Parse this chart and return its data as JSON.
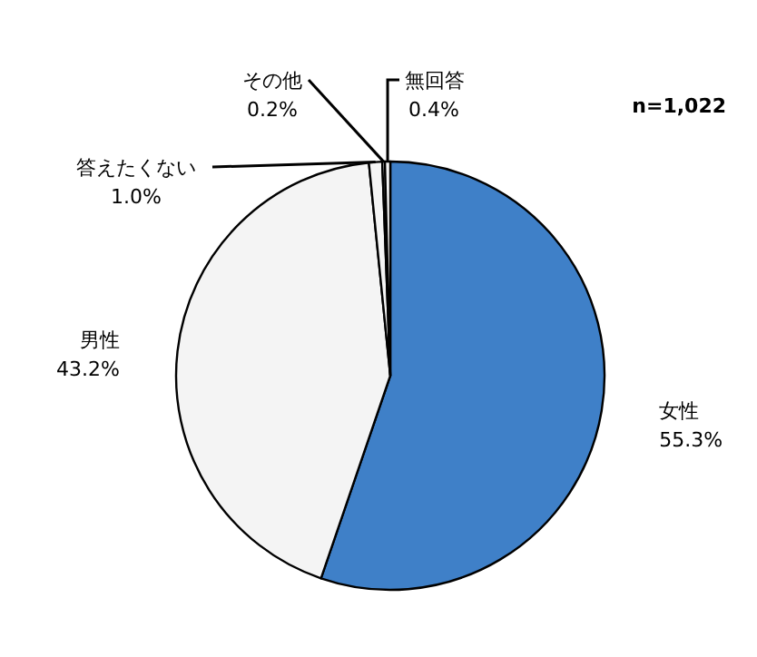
{
  "chart_data": {
    "type": "pie",
    "categories": [
      "女性",
      "男性",
      "答えたくない",
      "その他",
      "無回答"
    ],
    "values": [
      55.3,
      43.2,
      1.0,
      0.2,
      0.4
    ],
    "colors": [
      "#3f80c8",
      "#f4f4f4",
      "#f4f4f4",
      "#f4f4f4",
      "#f4f4f4"
    ],
    "value_labels": [
      "55.3%",
      "43.2%",
      "1.0%",
      "0.2%",
      "0.4%"
    ],
    "annotations": [
      "n=1,022"
    ]
  }
}
